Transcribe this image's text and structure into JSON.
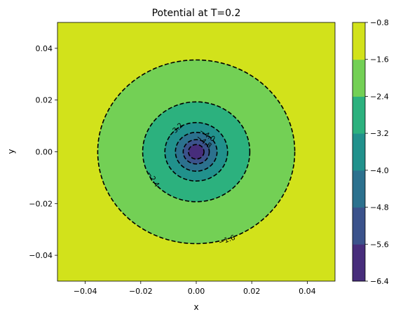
{
  "chart_data": {
    "type": "contour",
    "title": "Potential at T=0.2",
    "xlabel": "x",
    "ylabel": "y",
    "xlim": [
      -0.05,
      0.05
    ],
    "ylim": [
      -0.05,
      0.05
    ],
    "x_ticks": [
      -0.04,
      -0.02,
      0.0,
      0.02,
      0.04
    ],
    "x_tick_labels": [
      "−0.04",
      "−0.02",
      "0.00",
      "0.02",
      "0.04"
    ],
    "y_ticks": [
      -0.04,
      -0.02,
      0.0,
      0.02,
      0.04
    ],
    "y_tick_labels": [
      "−0.04",
      "−0.02",
      "0.00",
      "0.02",
      "0.04"
    ],
    "center": [
      0.0,
      0.0
    ],
    "filled_levels": [
      {
        "lower": -1.6,
        "upper": -0.8,
        "color": "#d2e21b",
        "outer_radius": null
      },
      {
        "lower": -2.4,
        "upper": -1.6,
        "color": "#73d055",
        "outer_radius": 0.0355
      },
      {
        "lower": -3.2,
        "upper": -2.4,
        "color": "#2cb17e",
        "outer_radius": 0.0193
      },
      {
        "lower": -4.0,
        "upper": -3.2,
        "color": "#21918c",
        "outer_radius": 0.0113
      },
      {
        "lower": -4.8,
        "upper": -4.0,
        "color": "#2c718e",
        "outer_radius": 0.0075
      },
      {
        "lower": -5.6,
        "upper": -4.8,
        "color": "#3b528b",
        "outer_radius": 0.0047
      },
      {
        "lower": -6.4,
        "upper": -5.6,
        "color": "#472d7b",
        "outer_radius": 0.0028
      }
    ],
    "contour_lines": [
      {
        "level": -1.6,
        "radius": 0.0355,
        "label": "−1.6",
        "label_at": [
          0.011,
          -0.034
        ]
      },
      {
        "level": -2.4,
        "radius": 0.0193,
        "label": "−2.4",
        "label_at": [
          -0.0155,
          -0.0105
        ]
      },
      {
        "level": -3.2,
        "radius": 0.0113,
        "label": "−3.2",
        "label_at": [
          -0.0075,
          0.0085
        ]
      },
      {
        "level": -4.0,
        "radius": 0.0075,
        "label": "−4.0",
        "label_at": [
          0.004,
          0.0065
        ]
      },
      {
        "level": -4.8,
        "radius": 0.0047,
        "label": "−4.8",
        "label_at": [
          0.0028,
          0.004
        ]
      },
      {
        "level": -5.6,
        "radius": 0.0028,
        "label": "",
        "label_at": null
      }
    ],
    "line_style": "dashed",
    "line_color": "#000000",
    "colorbar": {
      "ticks": [
        -6.4,
        -5.6,
        -4.8,
        -4.0,
        -3.2,
        -2.4,
        -1.6,
        -0.8
      ],
      "tick_labels": [
        "−6.4",
        "−5.6",
        "−4.8",
        "−4.0",
        "−3.2",
        "−2.4",
        "−1.6",
        "−0.8"
      ],
      "colors": [
        "#472d7b",
        "#3b528b",
        "#2c718e",
        "#21918c",
        "#2cb17e",
        "#73d055",
        "#d2e21b"
      ],
      "placement": "right"
    },
    "grid": false
  }
}
